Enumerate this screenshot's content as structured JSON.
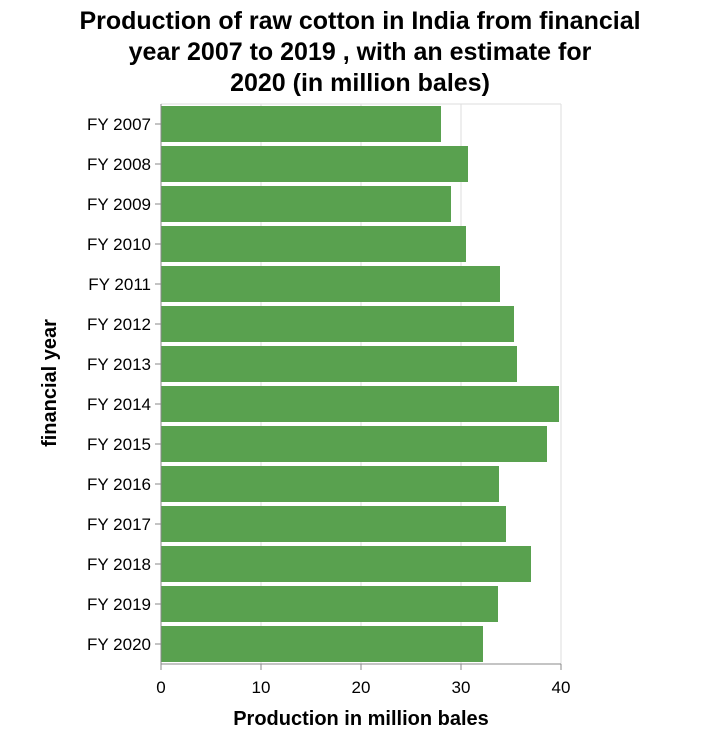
{
  "chart_data": {
    "type": "bar",
    "orientation": "horizontal",
    "title_lines": [
      "Production of raw cotton in India from financial",
      "year 2007 to 2019 , with an estimate for",
      "2020 (in million bales)"
    ],
    "xlabel": "Production in million bales",
    "ylabel": "financial year",
    "categories": [
      "FY 2007",
      "FY 2008",
      "FY 2009",
      "FY 2010",
      "FY 2011",
      "FY 2012",
      "FY 2013",
      "FY 2014",
      "FY 2015",
      "FY 2016",
      "FY 2017",
      "FY 2018",
      "FY 2019",
      "FY 2020"
    ],
    "values": [
      28,
      30.7,
      29,
      30.5,
      33.9,
      35.3,
      35.6,
      39.8,
      38.6,
      33.8,
      34.5,
      37,
      33.7,
      32.2
    ],
    "xlim": [
      0,
      40
    ],
    "xticks": [
      0,
      10,
      20,
      30,
      40
    ],
    "grid": true,
    "bar_color": "#59a14f"
  }
}
